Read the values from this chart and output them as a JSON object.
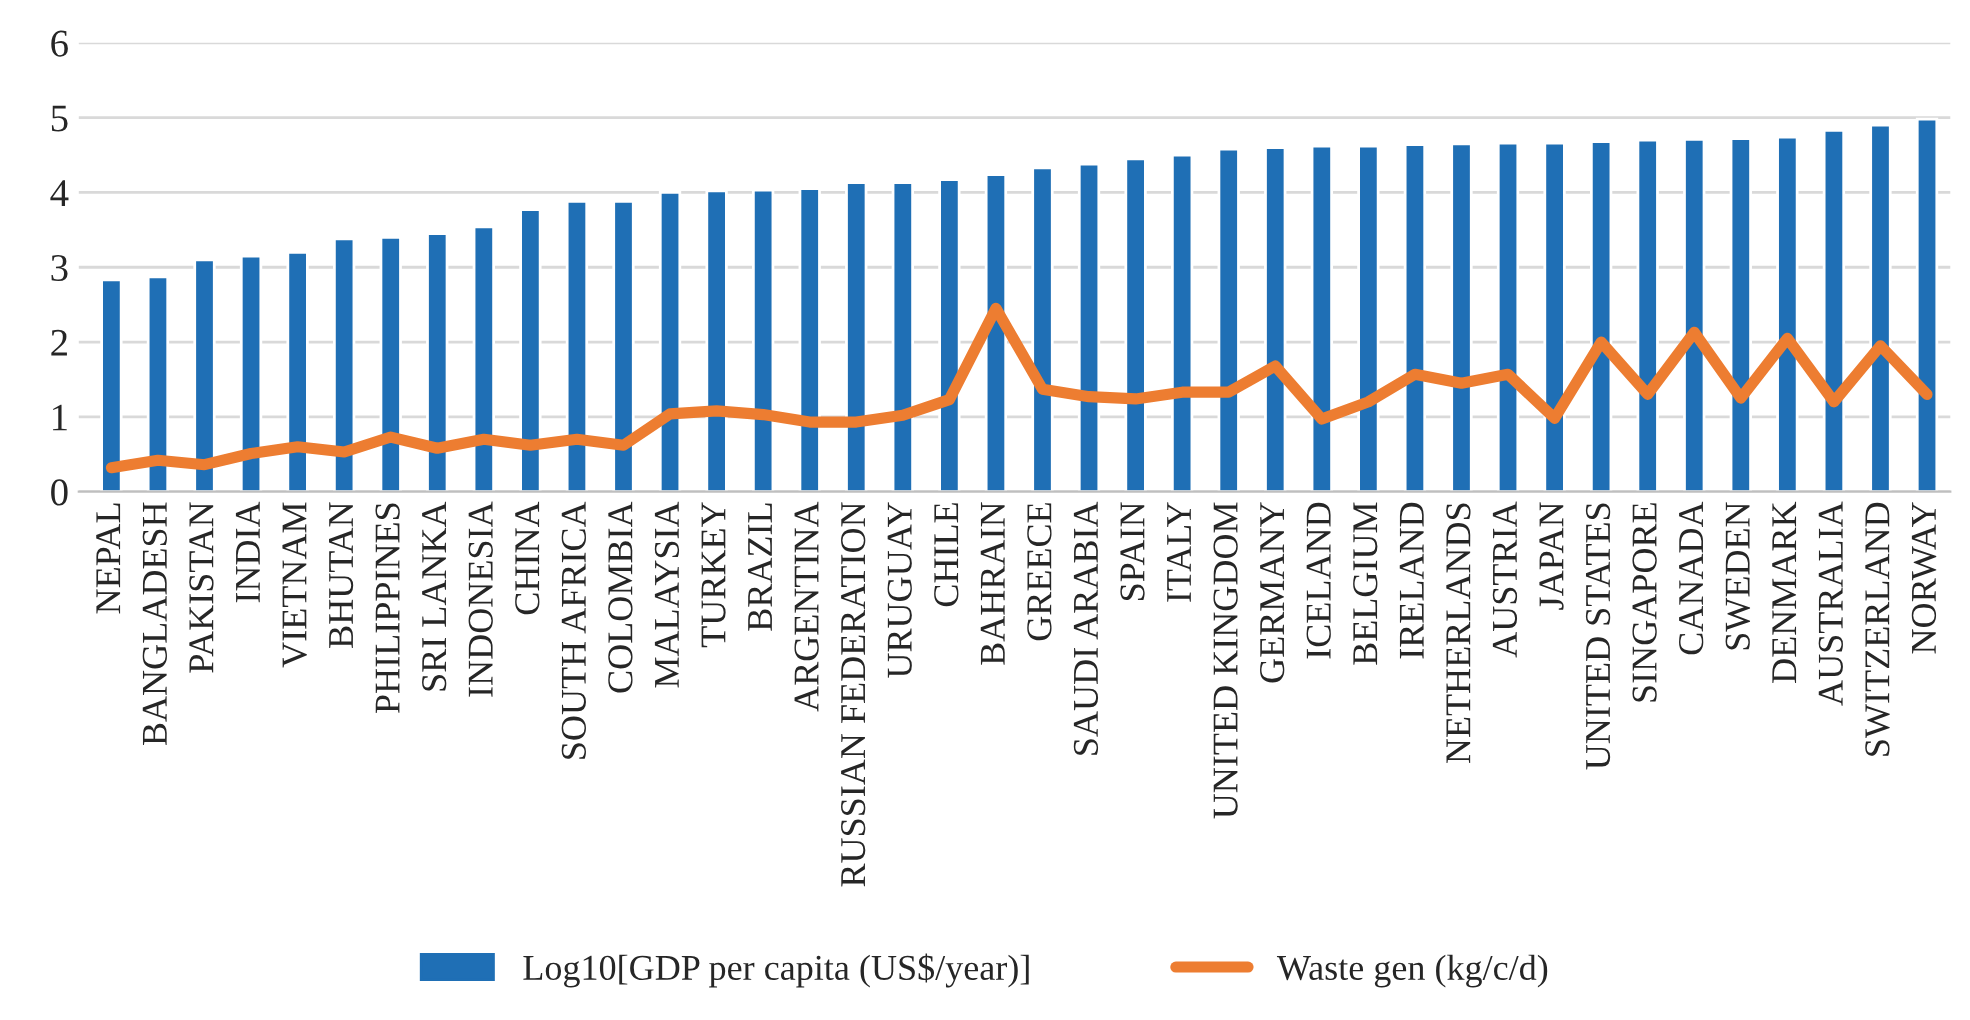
{
  "chart_data": {
    "type": "bar",
    "categories": [
      "NEPAL",
      "BANGLADESH",
      "PAKISTAN",
      "INDIA",
      "VIETNAM",
      "BHUTAN",
      "PHILIPPINES",
      "SRI LANKA",
      "INDONESIA",
      "CHINA",
      "SOUTH AFRICA",
      "COLOMBIA",
      "MALAYSIA",
      "TURKEY",
      "BRAZIL",
      "ARGENTINA",
      "RUSSIAN FEDERATION",
      "URUGUAY",
      "CHILE",
      "BAHRAIN",
      "GREECE",
      "SAUDI ARABIA",
      "SPAIN",
      "ITALY",
      "UNITED KINGDOM",
      "GERMANY",
      "ICELAND",
      "BELGIUM",
      "IRELAND",
      "NETHERLANDS",
      "AUSTRIA",
      "JAPAN",
      "UNITED STATES",
      "SINGAPORE",
      "CANADA",
      "SWEDEN",
      "DENMARK",
      "AUSTRALIA",
      "SWITZERLAND",
      "NORWAY"
    ],
    "series": [
      {
        "name": "Log10[GDP per capita (US$/year)]",
        "color": "#1f6fb5",
        "values": [
          2.83,
          2.87,
          3.1,
          3.15,
          3.2,
          3.38,
          3.4,
          3.45,
          3.54,
          3.77,
          3.88,
          3.88,
          4.0,
          4.02,
          4.03,
          4.05,
          4.13,
          4.13,
          4.17,
          4.24,
          4.33,
          4.38,
          4.45,
          4.5,
          4.58,
          4.6,
          4.62,
          4.62,
          4.64,
          4.65,
          4.66,
          4.66,
          4.68,
          4.7,
          4.71,
          4.72,
          4.74,
          4.83,
          4.9,
          4.98
        ]
      },
      {
        "name": "Waste gen (kg/c/d)",
        "type": "line",
        "color": "#ed7d31",
        "values": [
          0.32,
          0.42,
          0.36,
          0.51,
          0.6,
          0.53,
          0.73,
          0.58,
          0.7,
          0.62,
          0.7,
          0.62,
          1.04,
          1.08,
          1.03,
          0.93,
          0.93,
          1.02,
          1.23,
          2.45,
          1.37,
          1.27,
          1.24,
          1.33,
          1.33,
          1.68,
          0.97,
          1.2,
          1.57,
          1.45,
          1.57,
          0.98,
          2.0,
          1.3,
          2.13,
          1.25,
          2.05,
          1.2,
          1.95,
          1.3
        ]
      }
    ],
    "ylim": [
      0,
      6
    ],
    "yticks": [
      0,
      1,
      2,
      3,
      4,
      5,
      6
    ],
    "grid": "y",
    "legend": "bottom",
    "marker": "none",
    "line_style": "solid"
  }
}
